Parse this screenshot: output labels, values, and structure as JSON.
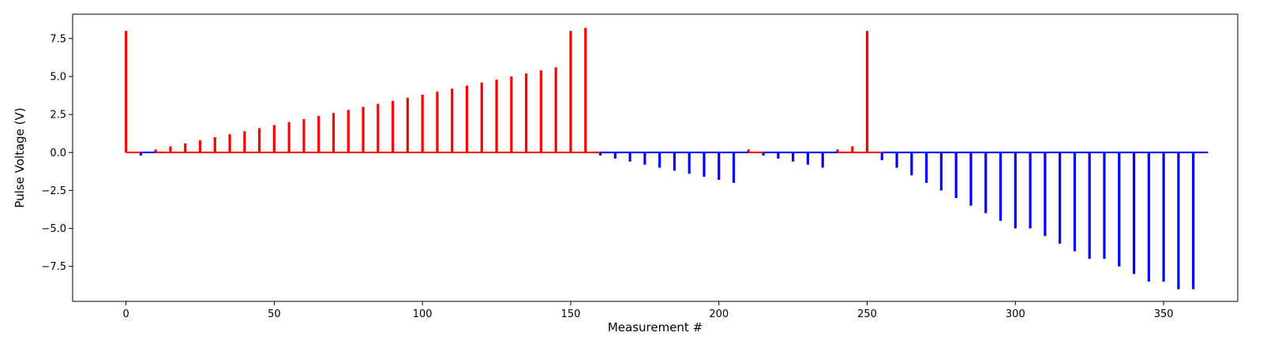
{
  "chart_data": {
    "type": "bar",
    "xlabel": "Measurement #",
    "ylabel": "Pulse Voltage (V)",
    "xlim": [
      -18,
      375
    ],
    "ylim": [
      -9.8,
      9.1
    ],
    "xticks": [
      0,
      50,
      100,
      150,
      200,
      250,
      300,
      350
    ],
    "yticks": [
      -7.5,
      -5.0,
      -2.5,
      0.0,
      2.5,
      5.0,
      7.5
    ],
    "xtick_labels": [
      "0",
      "50",
      "100",
      "150",
      "200",
      "250",
      "300",
      "350"
    ],
    "ytick_labels": [
      "−7.5",
      "−5.0",
      "−2.5",
      "0.0",
      "2.5",
      "5.0",
      "7.5"
    ],
    "grid": false,
    "colors": {
      "positive": "#ff0000",
      "negative": "#0000ff"
    },
    "baseline": {
      "segments": [
        {
          "x": [
            0,
            5
          ],
          "color": "#ff0000"
        },
        {
          "x": [
            5,
            10
          ],
          "color": "#0000ff"
        },
        {
          "x": [
            10,
            160
          ],
          "color": "#ff0000"
        },
        {
          "x": [
            160,
            210
          ],
          "color": "#0000ff"
        },
        {
          "x": [
            210,
            215
          ],
          "color": "#ff0000"
        },
        {
          "x": [
            215,
            240
          ],
          "color": "#0000ff"
        },
        {
          "x": [
            240,
            255
          ],
          "color": "#ff0000"
        },
        {
          "x": [
            255,
            365
          ],
          "color": "#0000ff"
        }
      ]
    },
    "x": [
      0,
      5,
      10,
      15,
      20,
      25,
      30,
      35,
      40,
      45,
      50,
      55,
      60,
      65,
      70,
      75,
      80,
      85,
      90,
      95,
      100,
      105,
      110,
      115,
      120,
      125,
      130,
      135,
      140,
      145,
      150,
      155,
      160,
      165,
      170,
      175,
      180,
      185,
      190,
      195,
      200,
      205,
      210,
      215,
      220,
      225,
      230,
      235,
      240,
      245,
      250,
      255,
      260,
      265,
      270,
      275,
      280,
      285,
      290,
      295,
      300,
      305,
      310,
      315,
      320,
      325,
      330,
      335,
      340,
      345,
      350,
      355,
      360
    ],
    "values": [
      8.0,
      -0.2,
      0.2,
      0.4,
      0.6,
      0.8,
      1.0,
      1.2,
      1.4,
      1.6,
      1.8,
      2.0,
      2.2,
      2.4,
      2.6,
      2.8,
      3.0,
      3.2,
      3.4,
      3.6,
      3.8,
      4.0,
      4.2,
      4.4,
      4.6,
      4.8,
      5.0,
      5.2,
      5.4,
      5.6,
      8.0,
      8.2,
      -0.2,
      -0.4,
      -0.6,
      -0.8,
      -1.0,
      -1.2,
      -1.4,
      -1.6,
      -1.8,
      -2.0,
      0.2,
      -0.2,
      -0.4,
      -0.6,
      -0.8,
      -1.0,
      0.2,
      0.4,
      8.0,
      -0.5,
      -1.0,
      -1.5,
      -2.0,
      -2.5,
      -3.0,
      -3.5,
      -4.0,
      -4.5,
      -5.0,
      -5.0,
      -5.5,
      -6.0,
      -6.5,
      -7.0,
      -7.0,
      -7.5,
      -8.0,
      -8.5,
      -8.5,
      -9.0,
      -9.0
    ]
  }
}
